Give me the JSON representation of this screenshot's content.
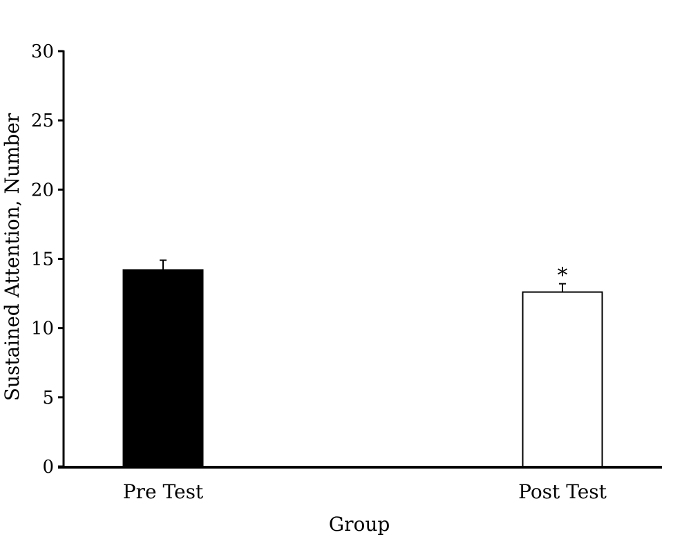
{
  "chart_data": {
    "type": "bar",
    "title": "",
    "xlabel": "Group",
    "ylabel": "Sustained Attention, Number",
    "ylim": [
      0,
      30
    ],
    "yticks": [
      0,
      5,
      10,
      15,
      20,
      25,
      30
    ],
    "categories": [
      "Pre Test",
      "Post Test"
    ],
    "values": [
      14.2,
      12.6
    ],
    "error_upper": [
      14.9,
      13.2
    ],
    "bar_colors": [
      "#000000",
      "#ffffff"
    ],
    "annotations": [
      "",
      "*"
    ],
    "grid": false,
    "legend": "none"
  }
}
